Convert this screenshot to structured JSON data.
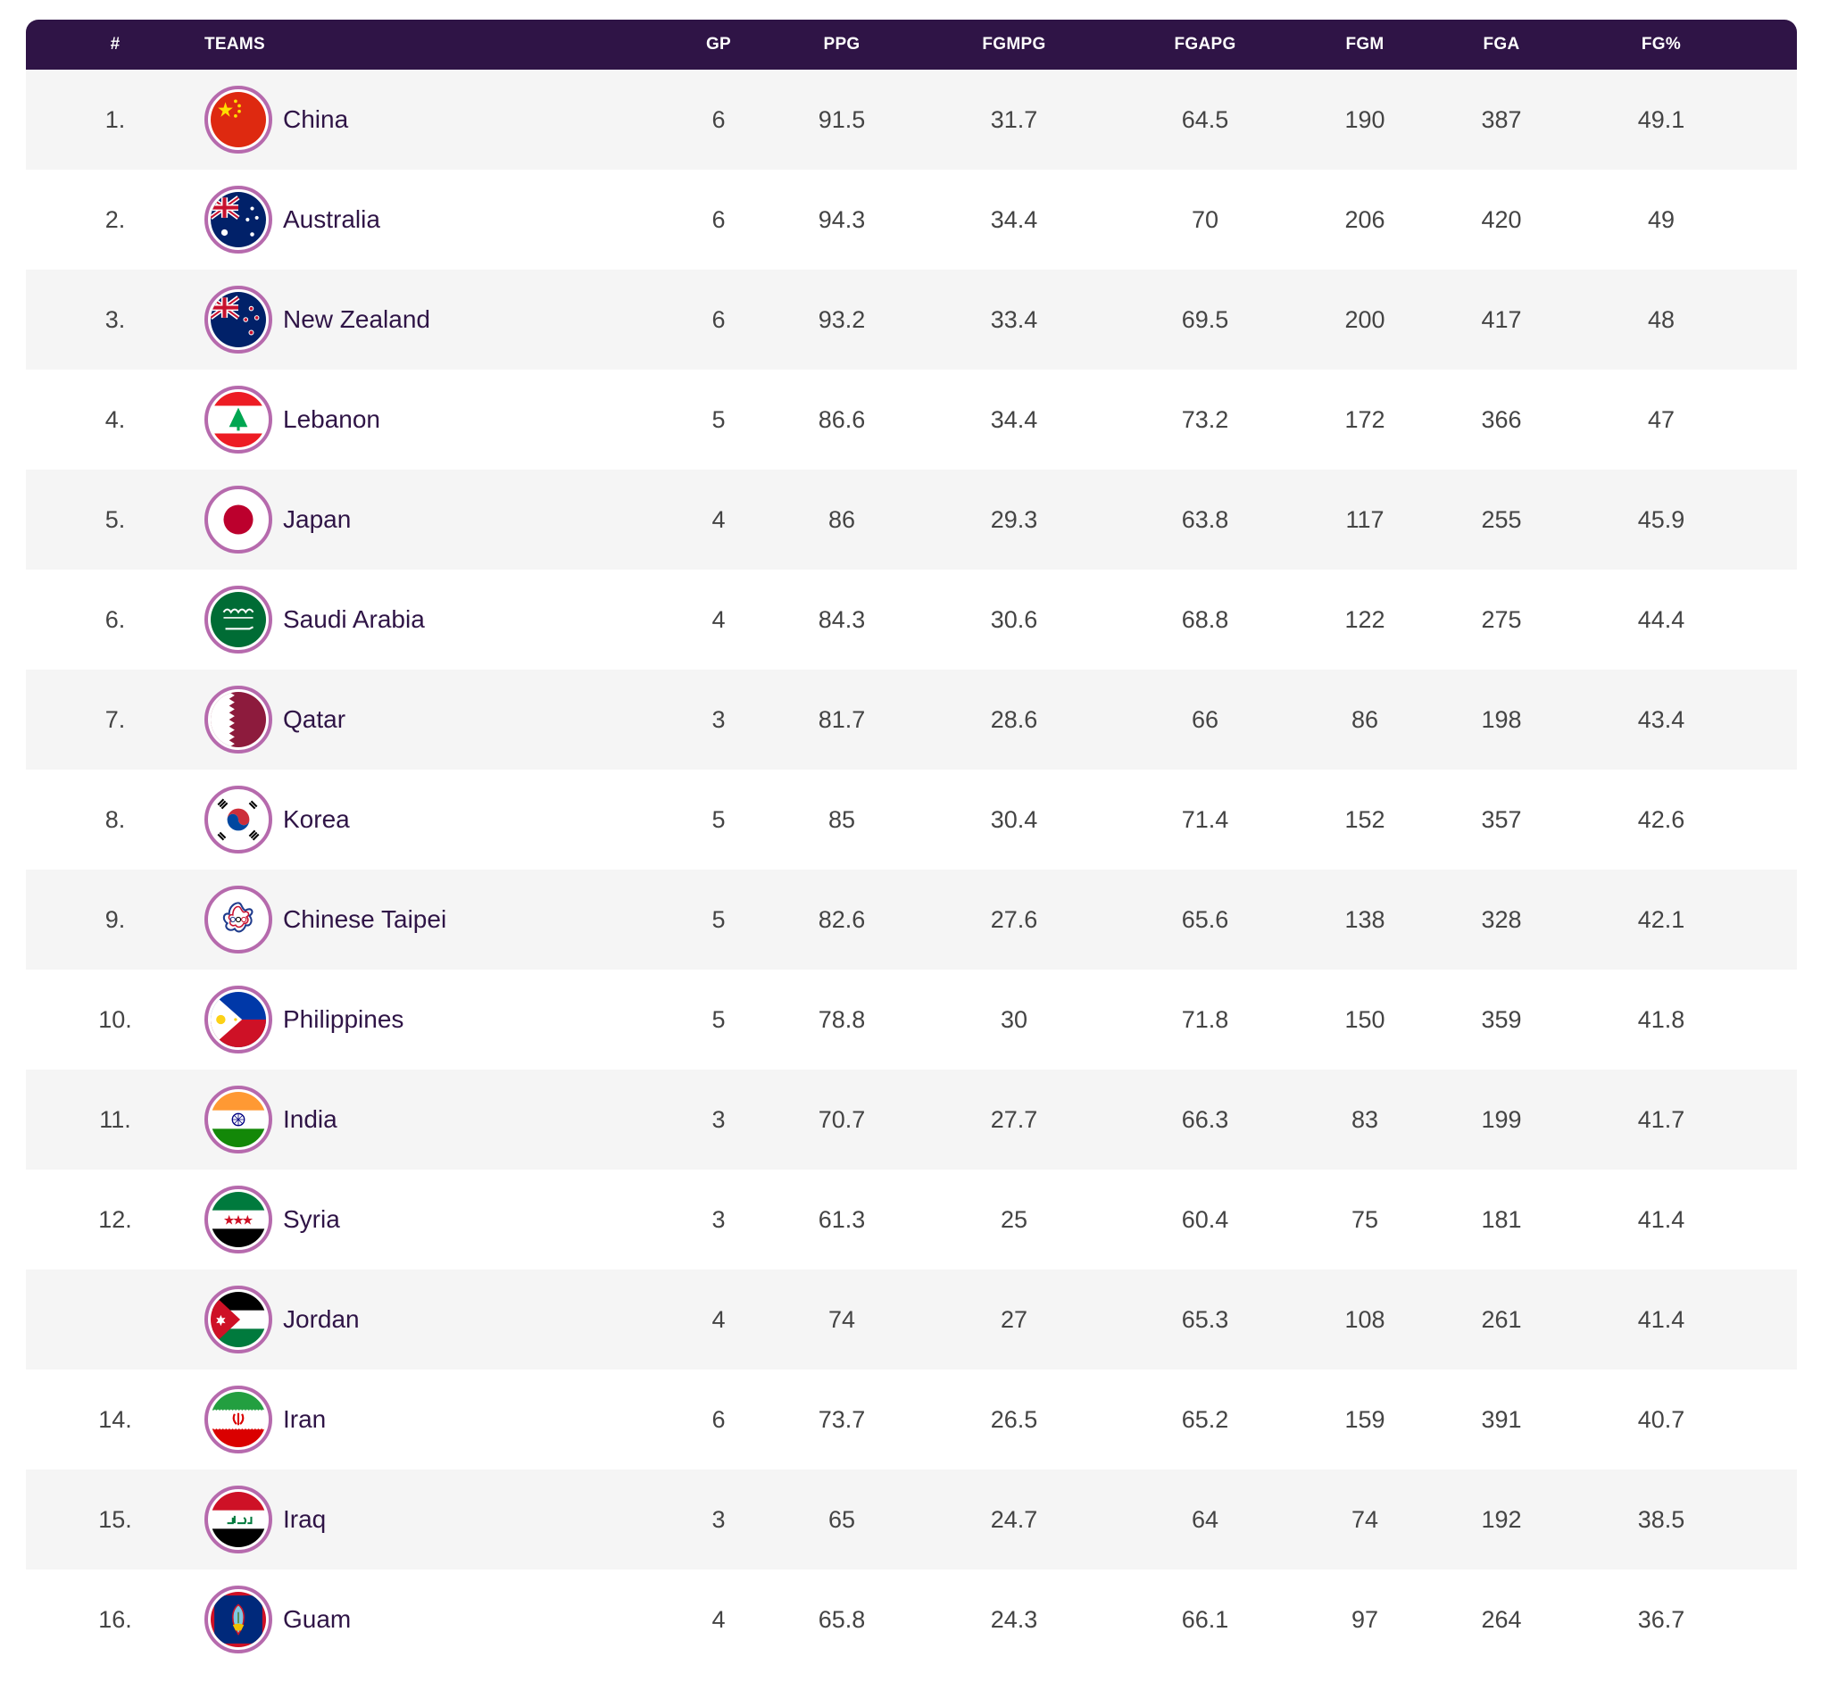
{
  "columns": {
    "rank": "#",
    "team": "TEAMS",
    "gp": "GP",
    "ppg": "PPG",
    "fgmpg": "FGMPG",
    "fgapg": "FGAPG",
    "fgm": "FGM",
    "fga": "FGA",
    "fgp": "FG%"
  },
  "colors": {
    "header_bg": "#2f1446",
    "flag_ring": "#b66aad",
    "stripe": "#f5f5f5",
    "team_text": "#2f1446"
  },
  "rows": [
    {
      "rank": "1.",
      "team": "China",
      "flag_icon": "china-flag-icon",
      "gp": "6",
      "ppg": "91.5",
      "fgmpg": "31.7",
      "fgapg": "64.5",
      "fgm": "190",
      "fga": "387",
      "fgp": "49.1"
    },
    {
      "rank": "2.",
      "team": "Australia",
      "flag_icon": "australia-flag-icon",
      "gp": "6",
      "ppg": "94.3",
      "fgmpg": "34.4",
      "fgapg": "70",
      "fgm": "206",
      "fga": "420",
      "fgp": "49"
    },
    {
      "rank": "3.",
      "team": "New Zealand",
      "flag_icon": "new-zealand-flag-icon",
      "gp": "6",
      "ppg": "93.2",
      "fgmpg": "33.4",
      "fgapg": "69.5",
      "fgm": "200",
      "fga": "417",
      "fgp": "48"
    },
    {
      "rank": "4.",
      "team": "Lebanon",
      "flag_icon": "lebanon-flag-icon",
      "gp": "5",
      "ppg": "86.6",
      "fgmpg": "34.4",
      "fgapg": "73.2",
      "fgm": "172",
      "fga": "366",
      "fgp": "47"
    },
    {
      "rank": "5.",
      "team": "Japan",
      "flag_icon": "japan-flag-icon",
      "gp": "4",
      "ppg": "86",
      "fgmpg": "29.3",
      "fgapg": "63.8",
      "fgm": "117",
      "fga": "255",
      "fgp": "45.9"
    },
    {
      "rank": "6.",
      "team": "Saudi Arabia",
      "flag_icon": "saudi-arabia-flag-icon",
      "gp": "4",
      "ppg": "84.3",
      "fgmpg": "30.6",
      "fgapg": "68.8",
      "fgm": "122",
      "fga": "275",
      "fgp": "44.4"
    },
    {
      "rank": "7.",
      "team": "Qatar",
      "flag_icon": "qatar-flag-icon",
      "gp": "3",
      "ppg": "81.7",
      "fgmpg": "28.6",
      "fgapg": "66",
      "fgm": "86",
      "fga": "198",
      "fgp": "43.4"
    },
    {
      "rank": "8.",
      "team": "Korea",
      "flag_icon": "korea-flag-icon",
      "gp": "5",
      "ppg": "85",
      "fgmpg": "30.4",
      "fgapg": "71.4",
      "fgm": "152",
      "fga": "357",
      "fgp": "42.6"
    },
    {
      "rank": "9.",
      "team": "Chinese Taipei",
      "flag_icon": "chinese-taipei-flag-icon",
      "gp": "5",
      "ppg": "82.6",
      "fgmpg": "27.6",
      "fgapg": "65.6",
      "fgm": "138",
      "fga": "328",
      "fgp": "42.1"
    },
    {
      "rank": "10.",
      "team": "Philippines",
      "flag_icon": "philippines-flag-icon",
      "gp": "5",
      "ppg": "78.8",
      "fgmpg": "30",
      "fgapg": "71.8",
      "fgm": "150",
      "fga": "359",
      "fgp": "41.8"
    },
    {
      "rank": "11.",
      "team": "India",
      "flag_icon": "india-flag-icon",
      "gp": "3",
      "ppg": "70.7",
      "fgmpg": "27.7",
      "fgapg": "66.3",
      "fgm": "83",
      "fga": "199",
      "fgp": "41.7"
    },
    {
      "rank": "12.",
      "team": "Syria",
      "flag_icon": "syria-flag-icon",
      "gp": "3",
      "ppg": "61.3",
      "fgmpg": "25",
      "fgapg": "60.4",
      "fgm": "75",
      "fga": "181",
      "fgp": "41.4"
    },
    {
      "rank": "",
      "team": "Jordan",
      "flag_icon": "jordan-flag-icon",
      "gp": "4",
      "ppg": "74",
      "fgmpg": "27",
      "fgapg": "65.3",
      "fgm": "108",
      "fga": "261",
      "fgp": "41.4"
    },
    {
      "rank": "14.",
      "team": "Iran",
      "flag_icon": "iran-flag-icon",
      "gp": "6",
      "ppg": "73.7",
      "fgmpg": "26.5",
      "fgapg": "65.2",
      "fgm": "159",
      "fga": "391",
      "fgp": "40.7"
    },
    {
      "rank": "15.",
      "team": "Iraq",
      "flag_icon": "iraq-flag-icon",
      "gp": "3",
      "ppg": "65",
      "fgmpg": "24.7",
      "fgapg": "64",
      "fgm": "74",
      "fga": "192",
      "fgp": "38.5"
    },
    {
      "rank": "16.",
      "team": "Guam",
      "flag_icon": "guam-flag-icon",
      "gp": "4",
      "ppg": "65.8",
      "fgmpg": "24.3",
      "fgapg": "66.1",
      "fgm": "97",
      "fga": "264",
      "fgp": "36.7"
    }
  ]
}
